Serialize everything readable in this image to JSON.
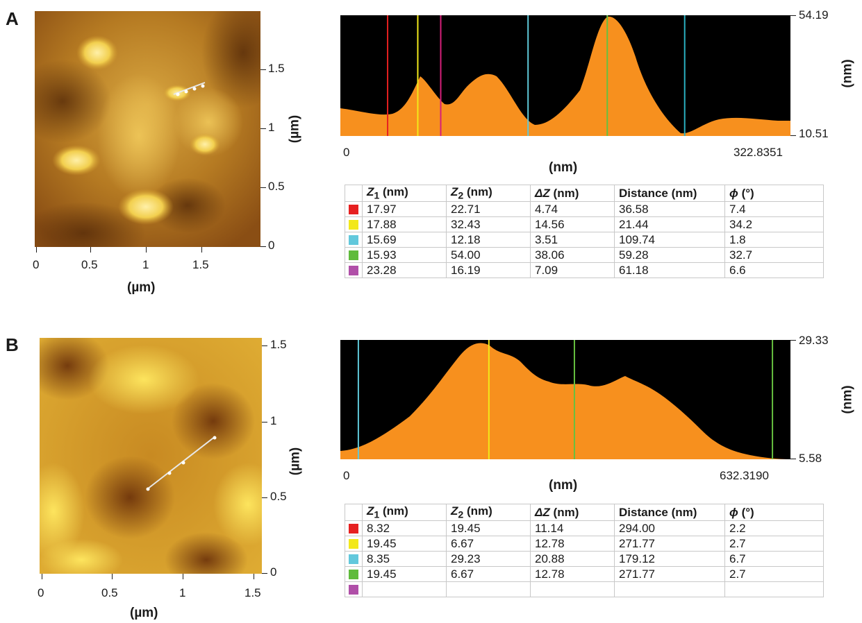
{
  "panels": [
    {
      "letter": "A",
      "image": {
        "x_ticks": [
          "0",
          "0.5",
          "1",
          "1.5"
        ],
        "y_ticks": [
          "0",
          "0.5",
          "1",
          "1.5"
        ],
        "x_title": "(µm)",
        "y_title": "(µm)"
      },
      "profile": {
        "y_max_label": "54.19",
        "y_min_label": "10.51",
        "x_min_label": "0",
        "x_max_label": "322.8351",
        "x_title": "(nm)",
        "y_title": "(nm)",
        "fill_color": "#f7901e",
        "bg_color": "#000000",
        "markers": [
          {
            "pos": 0.105,
            "color": "#e62020"
          },
          {
            "pos": 0.172,
            "color": "#f2e81a"
          },
          {
            "pos": 0.223,
            "color": "#d6207a"
          },
          {
            "pos": 0.417,
            "color": "#5fc8d8"
          },
          {
            "pos": 0.593,
            "color": "#66c040"
          },
          {
            "pos": 0.765,
            "color": "#2ab0c0"
          }
        ]
      },
      "table": {
        "headers": [
          "Z",
          "Z",
          "ΔZ",
          "Distance (nm)",
          "ϕ"
        ],
        "rows": [
          {
            "color": "#e62020",
            "z1": "17.97",
            "z2": "22.71",
            "dz": "4.74",
            "dist": "36.58",
            "phi": "7.4"
          },
          {
            "color": "#f2e81a",
            "z1": "17.88",
            "z2": "32.43",
            "dz": "14.56",
            "dist": "21.44",
            "phi": "34.2"
          },
          {
            "color": "#62c8dc",
            "z1": "15.69",
            "z2": "12.18",
            "dz": "3.51",
            "dist": "109.74",
            "phi": "1.8"
          },
          {
            "color": "#5fbb3c",
            "z1": "15.93",
            "z2": "54.00",
            "dz": "38.06",
            "dist": "59.28",
            "phi": "32.7"
          },
          {
            "color": "#b04fa8",
            "z1": "23.28",
            "z2": "16.19",
            "dz": "7.09",
            "dist": "61.18",
            "phi": "6.6"
          }
        ]
      }
    },
    {
      "letter": "B",
      "image": {
        "x_ticks": [
          "0",
          "0.5",
          "1",
          "1.5"
        ],
        "y_ticks": [
          "0",
          "0.5",
          "1",
          "1.5"
        ],
        "x_title": "(µm)",
        "y_title": "(µm)"
      },
      "profile": {
        "y_max_label": "29.33",
        "y_min_label": "5.58",
        "x_min_label": "0",
        "x_max_label": "632.3190",
        "x_title": "(nm)",
        "y_title": "(nm)",
        "fill_color": "#f7901e",
        "bg_color": "#000000",
        "markers": [
          {
            "pos": 0.04,
            "color": "#5fc8d8"
          },
          {
            "pos": 0.33,
            "color": "#f2e81a"
          },
          {
            "pos": 0.52,
            "color": "#66c040"
          },
          {
            "pos": 0.96,
            "color": "#66c040"
          }
        ]
      },
      "table": {
        "headers": [
          "Z",
          "Z",
          "ΔZ",
          "Distance (nm)",
          "ϕ"
        ],
        "rows": [
          {
            "color": "#e62020",
            "z1": "8.32",
            "z2": "19.45",
            "dz": "11.14",
            "dist": "294.00",
            "phi": "2.2"
          },
          {
            "color": "#f2e81a",
            "z1": "19.45",
            "z2": "6.67",
            "dz": "12.78",
            "dist": "271.77",
            "phi": "2.7"
          },
          {
            "color": "#62c8dc",
            "z1": "8.35",
            "z2": "29.23",
            "dz": "20.88",
            "dist": "179.12",
            "phi": "6.7"
          },
          {
            "color": "#5fbb3c",
            "z1": "19.45",
            "z2": "6.67",
            "dz": "12.78",
            "dist": "271.77",
            "phi": "2.7"
          },
          {
            "color": "#b04fa8",
            "z1": "",
            "z2": "",
            "dz": "",
            "dist": "",
            "phi": ""
          }
        ]
      }
    }
  ]
}
